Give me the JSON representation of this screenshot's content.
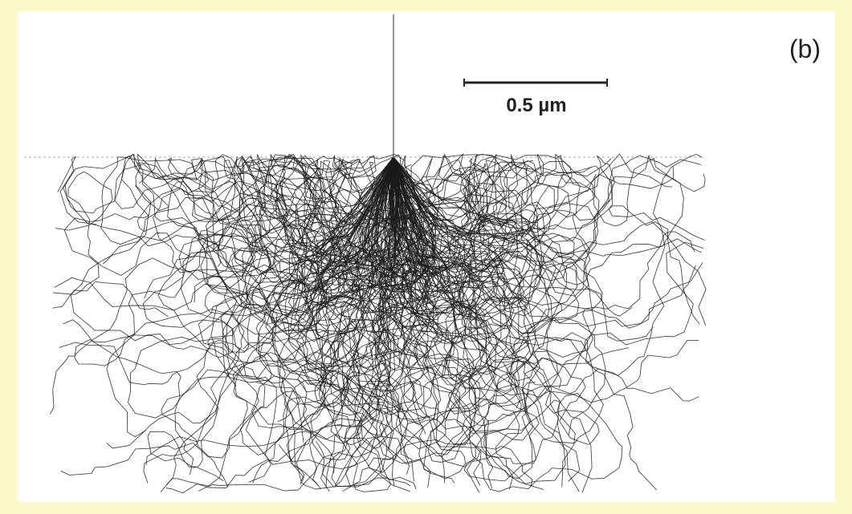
{
  "figure": {
    "panel_label": "(b)",
    "scale_bar_label": "0.5 µm"
  }
}
